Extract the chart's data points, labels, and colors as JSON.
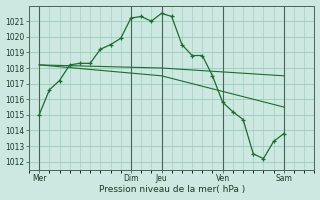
{
  "bg_color": "#cce8e0",
  "grid_color": "#99ccbb",
  "line_color": "#1a6e2e",
  "ylim": [
    1011.5,
    1022.0
  ],
  "xlim": [
    0,
    28
  ],
  "yticks": [
    1012,
    1013,
    1014,
    1015,
    1016,
    1017,
    1018,
    1019,
    1020,
    1021
  ],
  "xtick_labels": [
    "Mer",
    "Dim",
    "Jeu",
    "Ven",
    "Sam"
  ],
  "xtick_positions": [
    1,
    10,
    13,
    19,
    25
  ],
  "vlines": [
    1,
    10,
    13,
    19,
    25
  ],
  "xlabel": "Pression niveau de la mer( hPa )",
  "series1_x": [
    1,
    2,
    3,
    4,
    5,
    6,
    7,
    8,
    9,
    10,
    11,
    12,
    13,
    14,
    15,
    16,
    17,
    18,
    19,
    20,
    21,
    22,
    23,
    24,
    25
  ],
  "series1_y": [
    1015.0,
    1016.6,
    1017.2,
    1018.2,
    1018.3,
    1018.3,
    1019.2,
    1019.5,
    1019.9,
    1021.2,
    1021.3,
    1021.0,
    1021.5,
    1021.3,
    1019.5,
    1018.8,
    1018.8,
    1017.5,
    1015.8,
    1015.2,
    1014.7,
    1012.5,
    1012.2,
    1013.3,
    1013.8
  ],
  "series2_x": [
    1,
    13,
    25
  ],
  "series2_y": [
    1018.2,
    1018.0,
    1017.5
  ],
  "series3_x": [
    1,
    13,
    25
  ],
  "series3_y": [
    1018.2,
    1017.5,
    1015.5
  ],
  "figsize": [
    3.2,
    2.0
  ],
  "dpi": 100
}
